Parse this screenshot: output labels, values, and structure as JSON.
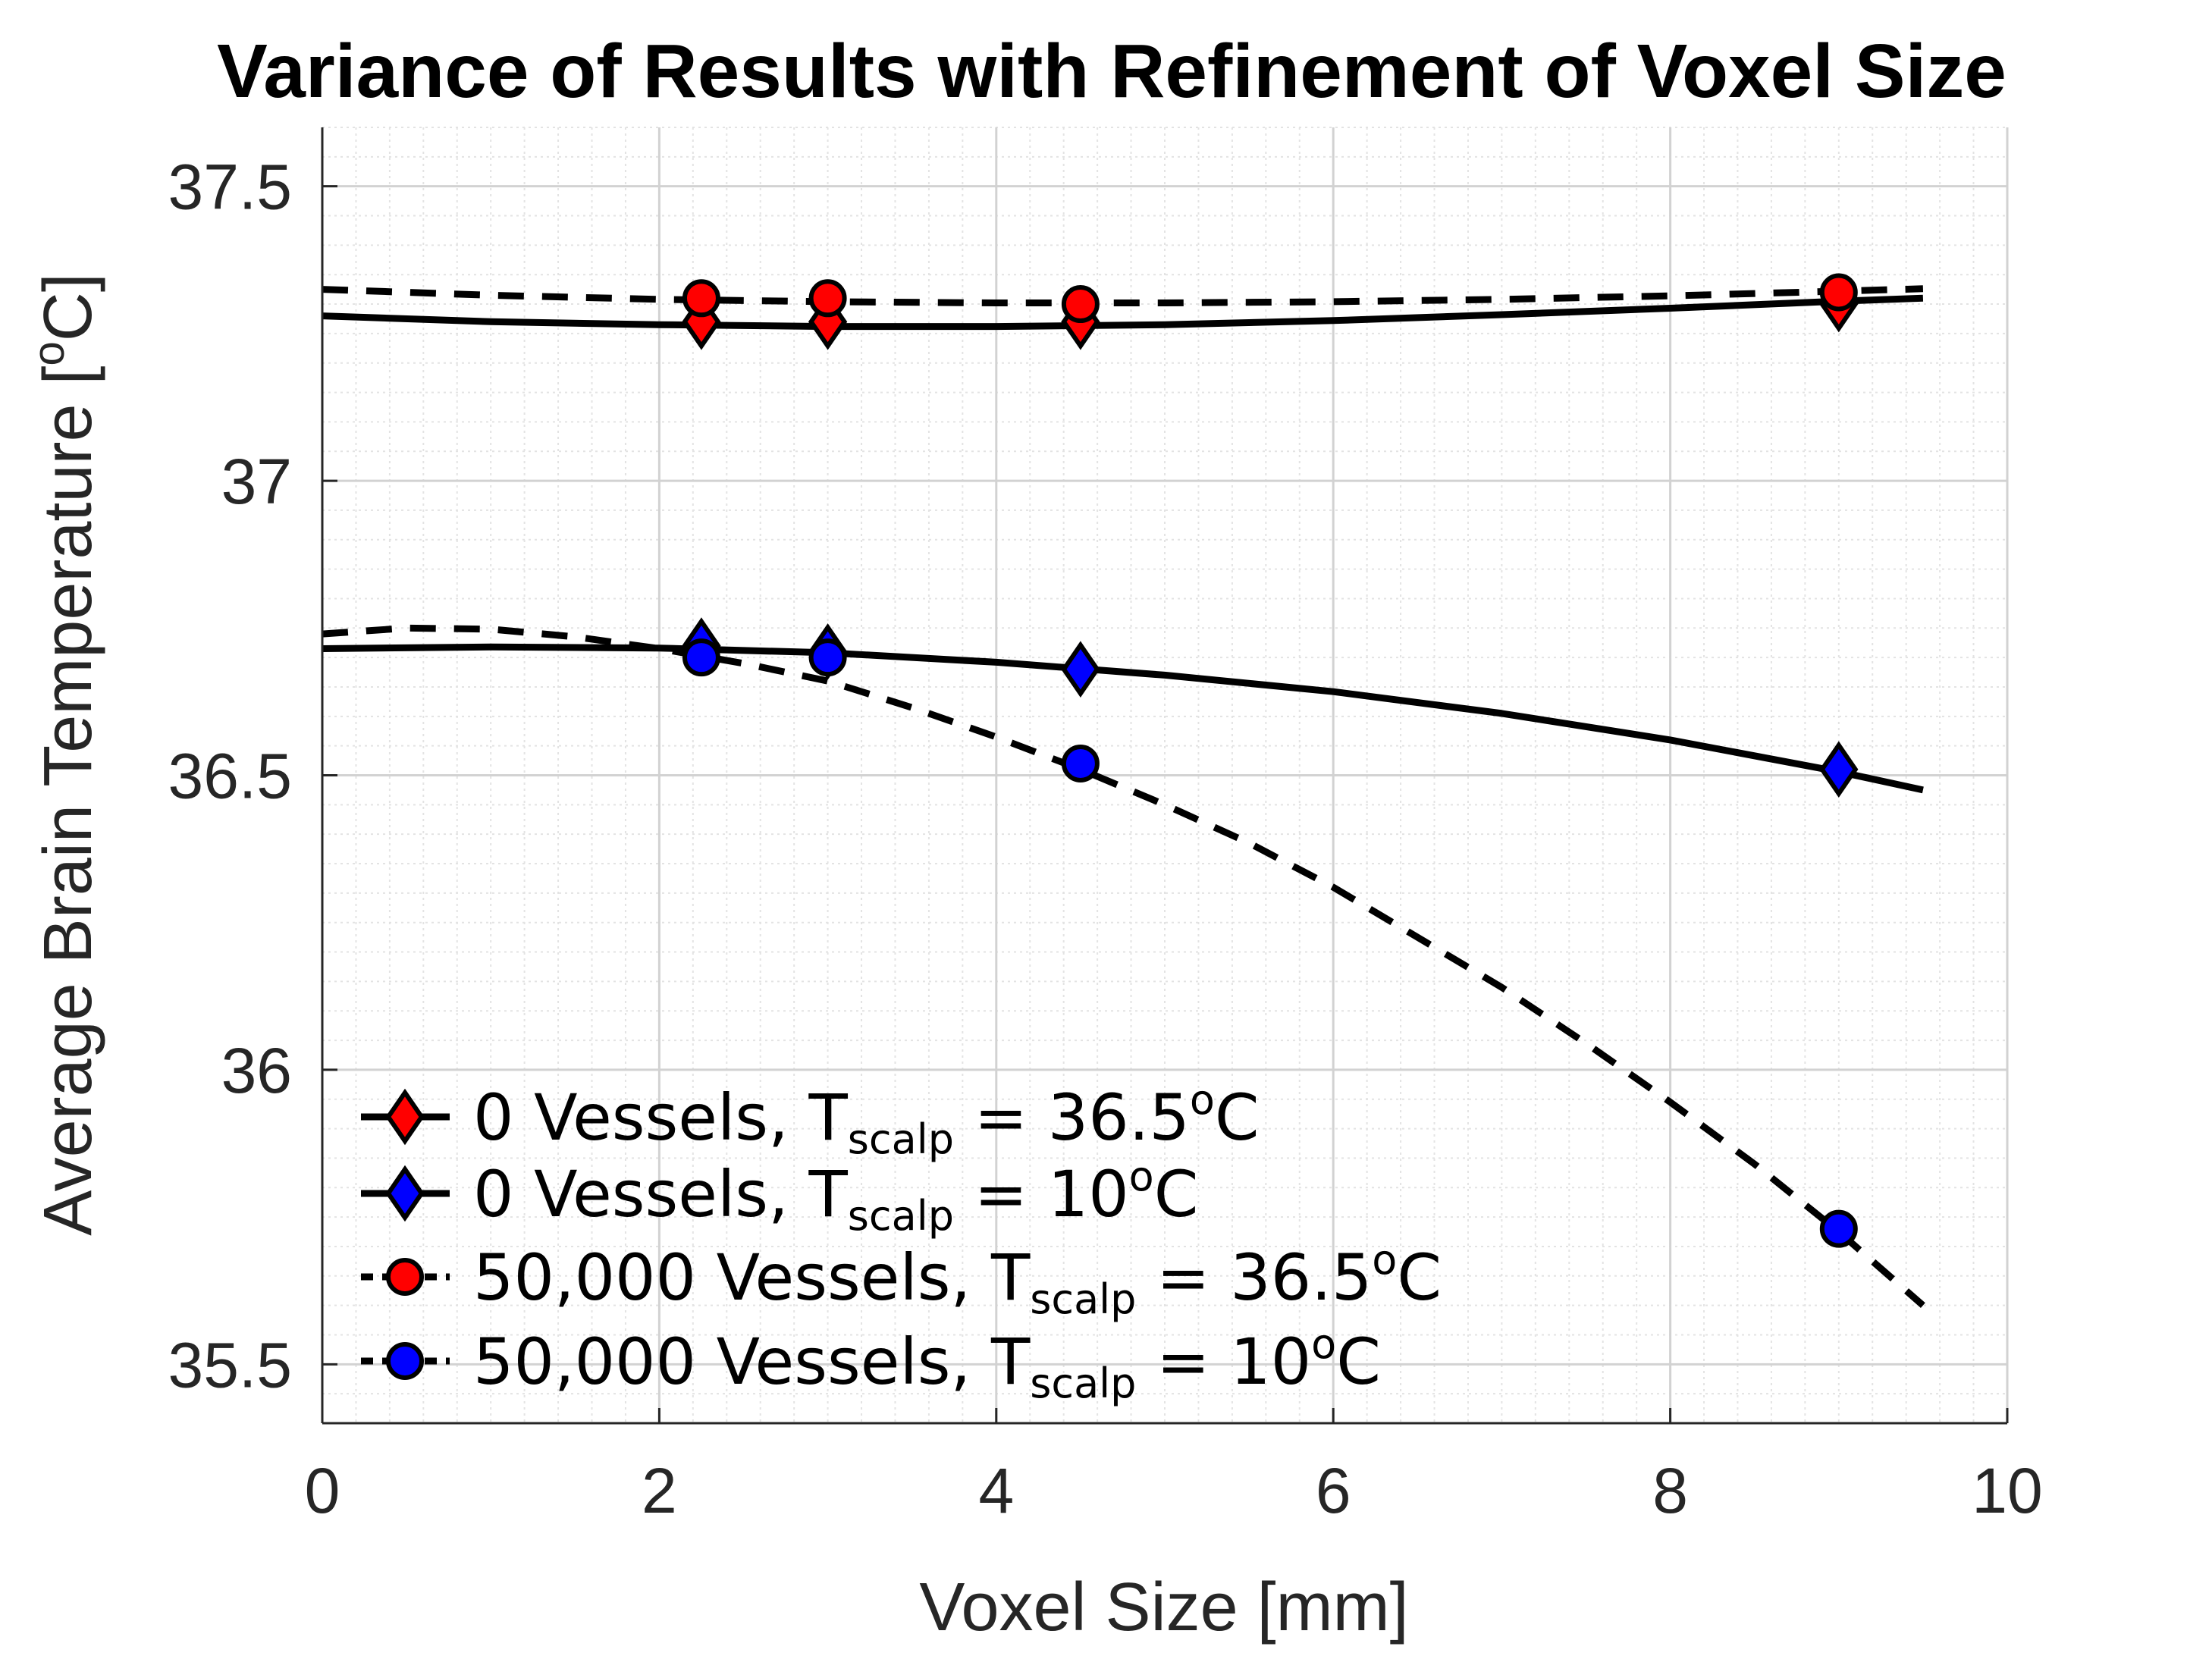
{
  "chart_data": {
    "type": "scatter",
    "title": "Variance of Results with Refinement of Voxel Size",
    "xlabel": "Voxel Size [mm]",
    "ylabel": "Average Brain Temperature [",
    "ylabel_sup": "o",
    "ylabel_end": "C]",
    "xlim": [
      0,
      10
    ],
    "ylim": [
      35.4,
      37.6
    ],
    "xticks": [
      0,
      2,
      4,
      6,
      8,
      10
    ],
    "xtick_labels": [
      "0",
      "2",
      "4",
      "6",
      "8",
      "10"
    ],
    "yticks": [
      35.5,
      36,
      36.5,
      37,
      37.5
    ],
    "ytick_labels": [
      "35.5",
      "36",
      "36.5",
      "37",
      "37.5"
    ],
    "grid": true,
    "minor_grid": true,
    "legend_position": "bottom-left",
    "series": [
      {
        "legend_prefix": "0 Vessels, T",
        "legend_sub": "scalp",
        "legend_value": " = 36.5",
        "legend_sup": "o",
        "legend_unit": "C",
        "marker": "diamond",
        "color": "#ff0000",
        "x": [
          2.25,
          3.0,
          4.5,
          9.0
        ],
        "y": [
          37.27,
          37.27,
          37.27,
          37.3
        ],
        "fit": {
          "style": "solid",
          "x": [
            0,
            1,
            2,
            3,
            4,
            5,
            6,
            7,
            8,
            9,
            9.5
          ],
          "y": [
            37.28,
            37.27,
            37.265,
            37.262,
            37.262,
            37.265,
            37.272,
            37.282,
            37.293,
            37.305,
            37.31
          ]
        }
      },
      {
        "legend_prefix": "0 Vessels, T",
        "legend_sub": "scalp",
        "legend_value": " = 10",
        "legend_sup": "o",
        "legend_unit": "C",
        "marker": "diamond",
        "color": "#0000ff",
        "x": [
          2.25,
          3.0,
          4.5,
          9.0
        ],
        "y": [
          36.72,
          36.71,
          36.68,
          36.51
        ],
        "fit": {
          "style": "solid",
          "x": [
            0,
            1,
            2,
            3,
            4,
            5,
            6,
            7,
            8,
            9,
            9.5
          ],
          "y": [
            36.715,
            36.718,
            36.716,
            36.708,
            36.692,
            36.67,
            36.642,
            36.605,
            36.56,
            36.506,
            36.475
          ]
        }
      },
      {
        "legend_prefix": "50,000 Vessels, T",
        "legend_sub": "scalp",
        "legend_value": " = 36.5",
        "legend_sup": "o",
        "legend_unit": "C",
        "marker": "circle",
        "color": "#ff0000",
        "x": [
          2.25,
          3.0,
          4.5,
          9.0
        ],
        "y": [
          37.31,
          37.31,
          37.3,
          37.32
        ],
        "fit": {
          "style": "dashed",
          "x": [
            0,
            1,
            2,
            3,
            4,
            5,
            6,
            7,
            8,
            9,
            9.5
          ],
          "y": [
            37.325,
            37.315,
            37.308,
            37.304,
            37.302,
            37.302,
            37.304,
            37.308,
            37.314,
            37.322,
            37.326
          ]
        }
      },
      {
        "legend_prefix": "50,000 Vessels, T",
        "legend_sub": "scalp",
        "legend_value": " = 10",
        "legend_sup": "o",
        "legend_unit": "C",
        "marker": "circle",
        "color": "#0000ff",
        "x": [
          2.25,
          3.0,
          4.5,
          9.0
        ],
        "y": [
          36.7,
          36.7,
          36.52,
          35.73
        ],
        "fit": {
          "style": "dashed",
          "x": [
            0,
            0.5,
            1,
            1.5,
            2,
            2.5,
            3,
            3.5,
            4,
            4.5,
            5,
            5.5,
            6,
            6.5,
            7,
            7.5,
            8,
            8.5,
            9,
            9.5
          ],
          "y": [
            36.74,
            36.75,
            36.748,
            36.735,
            36.715,
            36.69,
            36.66,
            36.615,
            36.565,
            36.51,
            36.45,
            36.385,
            36.31,
            36.225,
            36.14,
            36.045,
            35.945,
            35.84,
            35.725,
            35.6
          ]
        }
      }
    ]
  }
}
